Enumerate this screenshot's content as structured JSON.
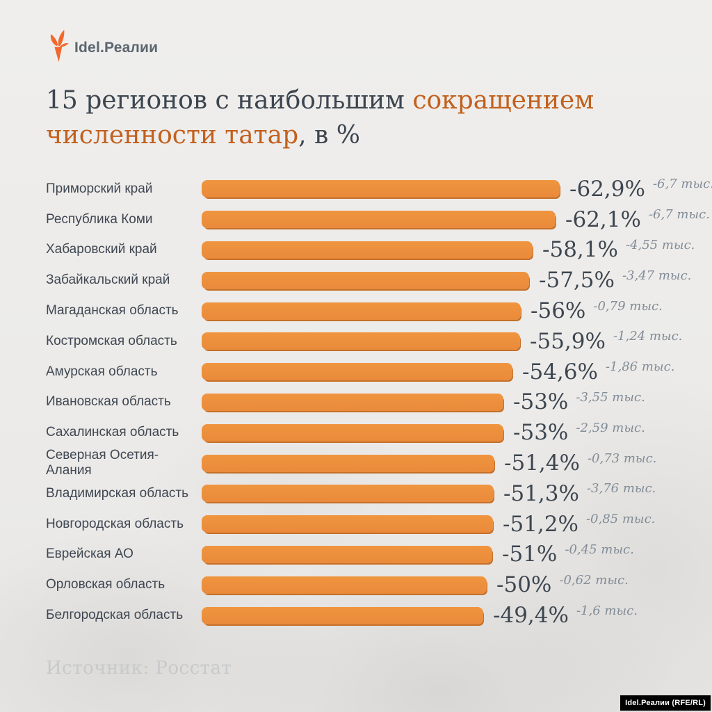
{
  "brand": {
    "logo_text": "Idel.Реалии",
    "badge_text": "Idel.Реалии (RFE/RL)"
  },
  "title": {
    "line1_dark": "15 регионов с наибольшим",
    "line1_orange": "сокращением",
    "line2_orange": "численности татар",
    "line2_dark": ", в %"
  },
  "source": "Источник: Росстат",
  "colors": {
    "bar": "#e98a3b",
    "bar_top": "#f0953f",
    "bar_shadow": "#c5702a",
    "accent": "#c2601d",
    "text_dark": "#3d4650",
    "label": "#3f4752",
    "text_muted": "#828c97",
    "source_text": "#c7c9cb",
    "bg": "#edecea",
    "badge_bg": "#000000",
    "badge_text": "#ffffff",
    "logo_text": "#5b6670",
    "logo_orange": "#f2682c"
  },
  "chart_data": {
    "type": "bar",
    "orientation": "horizontal",
    "title": "15 регионов с наибольшим сокращением численности татар, в %",
    "xlabel": "",
    "ylabel": "",
    "unit_percent": "%",
    "unit_abs": "тыс.",
    "xlim": [
      0,
      65
    ],
    "grid": false,
    "legend": false,
    "rows": [
      {
        "region": "Приморский край",
        "value": -62.9,
        "percent_label": "-62,9%",
        "abs_label": "-6,7 тыс."
      },
      {
        "region": "Республика Коми",
        "value": -62.1,
        "percent_label": "-62,1%",
        "abs_label": "-6,7 тыс."
      },
      {
        "region": "Хабаровский край",
        "value": -58.1,
        "percent_label": "-58,1%",
        "abs_label": "-4,55 тыс."
      },
      {
        "region": "Забайкальский край",
        "value": -57.5,
        "percent_label": "-57,5%",
        "abs_label": "-3,47 тыс."
      },
      {
        "region": "Магаданская область",
        "value": -56.0,
        "percent_label": "-56%",
        "abs_label": "-0,79 тыс."
      },
      {
        "region": "Костромская область",
        "value": -55.9,
        "percent_label": "-55,9%",
        "abs_label": "-1,24 тыс."
      },
      {
        "region": "Амурская область",
        "value": -54.6,
        "percent_label": "-54,6%",
        "abs_label": "-1,86 тыс."
      },
      {
        "region": "Ивановская область",
        "value": -53.0,
        "percent_label": "-53%",
        "abs_label": "-3,55 тыс."
      },
      {
        "region": "Сахалинская область",
        "value": -53.0,
        "percent_label": "-53%",
        "abs_label": "-2,59 тыс."
      },
      {
        "region": "Северная Осетия-Алания",
        "value": -51.4,
        "percent_label": "-51,4%",
        "abs_label": "-0,73 тыс."
      },
      {
        "region": "Владимирская область",
        "value": -51.3,
        "percent_label": "-51,3%",
        "abs_label": "-3,76 тыс."
      },
      {
        "region": "Новгородская область",
        "value": -51.2,
        "percent_label": "-51,2%",
        "abs_label": "-0,85 тыс."
      },
      {
        "region": "Еврейская АО",
        "value": -51.0,
        "percent_label": "-51%",
        "abs_label": "-0,45 тыс."
      },
      {
        "region": "Орловская область",
        "value": -50.0,
        "percent_label": "-50%",
        "abs_label": "-0,62 тыс."
      },
      {
        "region": "Белгородская область",
        "value": -49.4,
        "percent_label": "-49,4%",
        "abs_label": "-1,6 тыс."
      }
    ]
  }
}
